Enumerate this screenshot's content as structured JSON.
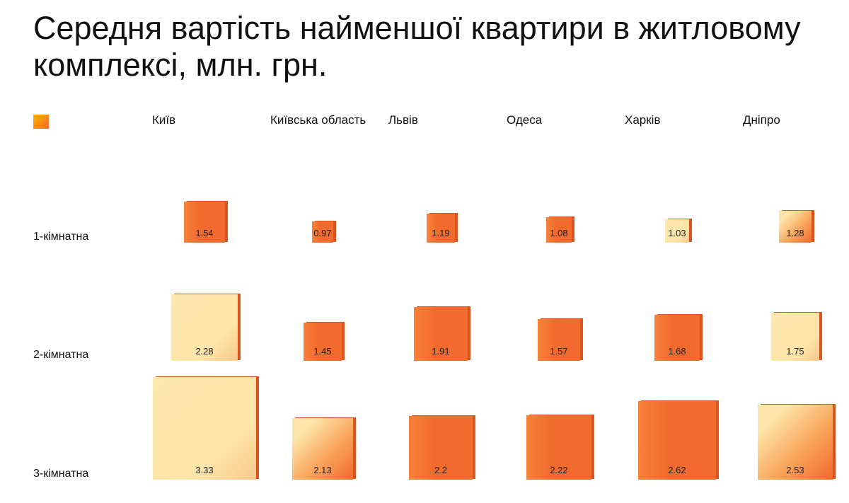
{
  "title": "Середня вартість найменшої квартири в житловому комплексі, млн. грн.",
  "colors": {
    "orange": "#F26A2E",
    "light": "#FDE4A8",
    "edge": "#D9541F"
  },
  "chart_data": {
    "type": "heatmap",
    "title": "Середня вартість найменшої квартири в житловому комплексі, млн. грн.",
    "encoding": "square size by value",
    "columns": [
      "Київ",
      "Київська область",
      "Львів",
      "Одеса",
      "Харків",
      "Дніпро"
    ],
    "rows": [
      "1-кімнатна",
      "2-кімнатна",
      "3-кімнатна"
    ],
    "values": [
      [
        1.54,
        0.97,
        1.19,
        1.08,
        1.03,
        1.28
      ],
      [
        2.28,
        1.45,
        1.91,
        1.57,
        1.68,
        1.75
      ],
      [
        3.33,
        2.13,
        2.2,
        2.22,
        2.62,
        2.53
      ]
    ],
    "labels": [
      [
        "1.54",
        "0.97",
        "1.19",
        "1.08",
        "1.03",
        "1.28"
      ],
      [
        "2.28",
        "1.45",
        "1.91",
        "1.57",
        "1.68",
        "1.75"
      ],
      [
        "3.33",
        "2.13",
        "2.2",
        "2.22",
        "2.62",
        "2.53"
      ]
    ],
    "shading": [
      [
        "orange",
        "orange",
        "orange",
        "orange",
        "light",
        "mixed"
      ],
      [
        "light",
        "orange",
        "orange",
        "orange",
        "orange",
        "light"
      ],
      [
        "light",
        "mixed",
        "orange",
        "orange",
        "orange",
        "mixed"
      ]
    ]
  }
}
